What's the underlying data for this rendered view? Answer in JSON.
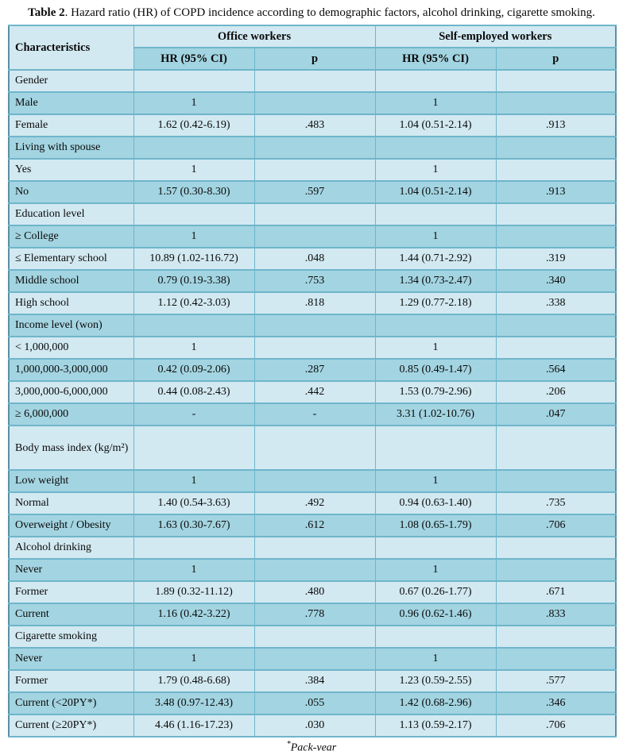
{
  "title": {
    "bold": "Table 2",
    "rest": ". Hazard ratio (HR) of COPD incidence according to demographic factors, alcohol drinking, cigarette smoking."
  },
  "table": {
    "characteristics_header": "Characteristics",
    "group_headers": [
      "Office workers",
      "Self-employed workers"
    ],
    "sub_headers": [
      "HR (95% CI)",
      "p",
      "HR (95% CI)",
      "p"
    ],
    "rows": [
      {
        "label": "Gender",
        "cells": [
          "",
          "",
          "",
          ""
        ]
      },
      {
        "label": "Male",
        "cells": [
          "1",
          "",
          "1",
          ""
        ]
      },
      {
        "label": "Female",
        "cells": [
          "1.62 (0.42-6.19)",
          ".483",
          "1.04 (0.51-2.14)",
          ".913"
        ]
      },
      {
        "label": "Living with spouse",
        "cells": [
          "",
          "",
          "",
          ""
        ]
      },
      {
        "label": "Yes",
        "cells": [
          "1",
          "",
          "1",
          ""
        ]
      },
      {
        "label": "No",
        "cells": [
          "1.57 (0.30-8.30)",
          ".597",
          "1.04 (0.51-2.14)",
          ".913"
        ]
      },
      {
        "label": "Education level",
        "cells": [
          "",
          "",
          "",
          ""
        ]
      },
      {
        "label": "≥ College",
        "cells": [
          "1",
          "",
          "1",
          ""
        ]
      },
      {
        "label": "≤ Elementary school",
        "cells": [
          "10.89 (1.02-116.72)",
          ".048",
          "1.44 (0.71-2.92)",
          ".319"
        ]
      },
      {
        "label": "Middle school",
        "cells": [
          "0.79 (0.19-3.38)",
          ".753",
          "1.34 (0.73-2.47)",
          ".340"
        ]
      },
      {
        "label": "High school",
        "cells": [
          "1.12 (0.42-3.03)",
          ".818",
          "1.29 (0.77-2.18)",
          ".338"
        ]
      },
      {
        "label": "Income level (won)",
        "cells": [
          "",
          "",
          "",
          ""
        ]
      },
      {
        "label": "< 1,000,000",
        "cells": [
          "1",
          "",
          "1",
          ""
        ]
      },
      {
        "label": "1,000,000-3,000,000",
        "cells": [
          "0.42 (0.09-2.06)",
          ".287",
          "0.85 (0.49-1.47)",
          ".564"
        ]
      },
      {
        "label": "3,000,000-6,000,000",
        "cells": [
          "0.44 (0.08-2.43)",
          ".442",
          "1.53 (0.79-2.96)",
          ".206"
        ]
      },
      {
        "label": "≥ 6,000,000",
        "cells": [
          "-",
          "-",
          "3.31 (1.02-10.76)",
          ".047"
        ]
      },
      {
        "label": "Body mass index (kg/m²)",
        "tall": true,
        "cells": [
          "",
          "",
          "",
          ""
        ]
      },
      {
        "label": "Low weight",
        "cells": [
          "1",
          "",
          "1",
          ""
        ]
      },
      {
        "label": "Normal",
        "cells": [
          "1.40 (0.54-3.63)",
          ".492",
          "0.94 (0.63-1.40)",
          ".735"
        ]
      },
      {
        "label": "Overweight / Obesity",
        "cells": [
          "1.63 (0.30-7.67)",
          ".612",
          "1.08 (0.65-1.79)",
          ".706"
        ]
      },
      {
        "label": "Alcohol drinking",
        "cells": [
          "",
          "",
          "",
          ""
        ]
      },
      {
        "label": "Never",
        "cells": [
          "1",
          "",
          "1",
          ""
        ]
      },
      {
        "label": "Former",
        "cells": [
          "1.89 (0.32-11.12)",
          ".480",
          "0.67 (0.26-1.77)",
          ".671"
        ]
      },
      {
        "label": "Current",
        "cells": [
          "1.16 (0.42-3.22)",
          ".778",
          "0.96 (0.62-1.46)",
          ".833"
        ]
      },
      {
        "label": "Cigarette smoking",
        "cells": [
          "",
          "",
          "",
          ""
        ]
      },
      {
        "label": "Never",
        "cells": [
          "1",
          "",
          "1",
          ""
        ]
      },
      {
        "label": "Former",
        "cells": [
          "1.79 (0.48-6.68)",
          ".384",
          "1.23 (0.59-2.55)",
          ".577"
        ]
      },
      {
        "label": "Current (<20PY*)",
        "cells": [
          "3.48 (0.97-12.43)",
          ".055",
          "1.42 (0.68-2.96)",
          ".346"
        ]
      },
      {
        "label": "Current (≥20PY*)",
        "cells": [
          "4.46 (1.16-17.23)",
          ".030",
          "1.13 (0.59-2.17)",
          ".706"
        ]
      }
    ]
  },
  "footnote": {
    "marker": "*",
    "text": "Pack-year"
  },
  "colors": {
    "row_light": "#d2e9f1",
    "row_dark": "#a3d4e1",
    "grid_line": "#6fb5cb",
    "outer_border": "#5b90a4",
    "text": "#0a0a0a"
  }
}
